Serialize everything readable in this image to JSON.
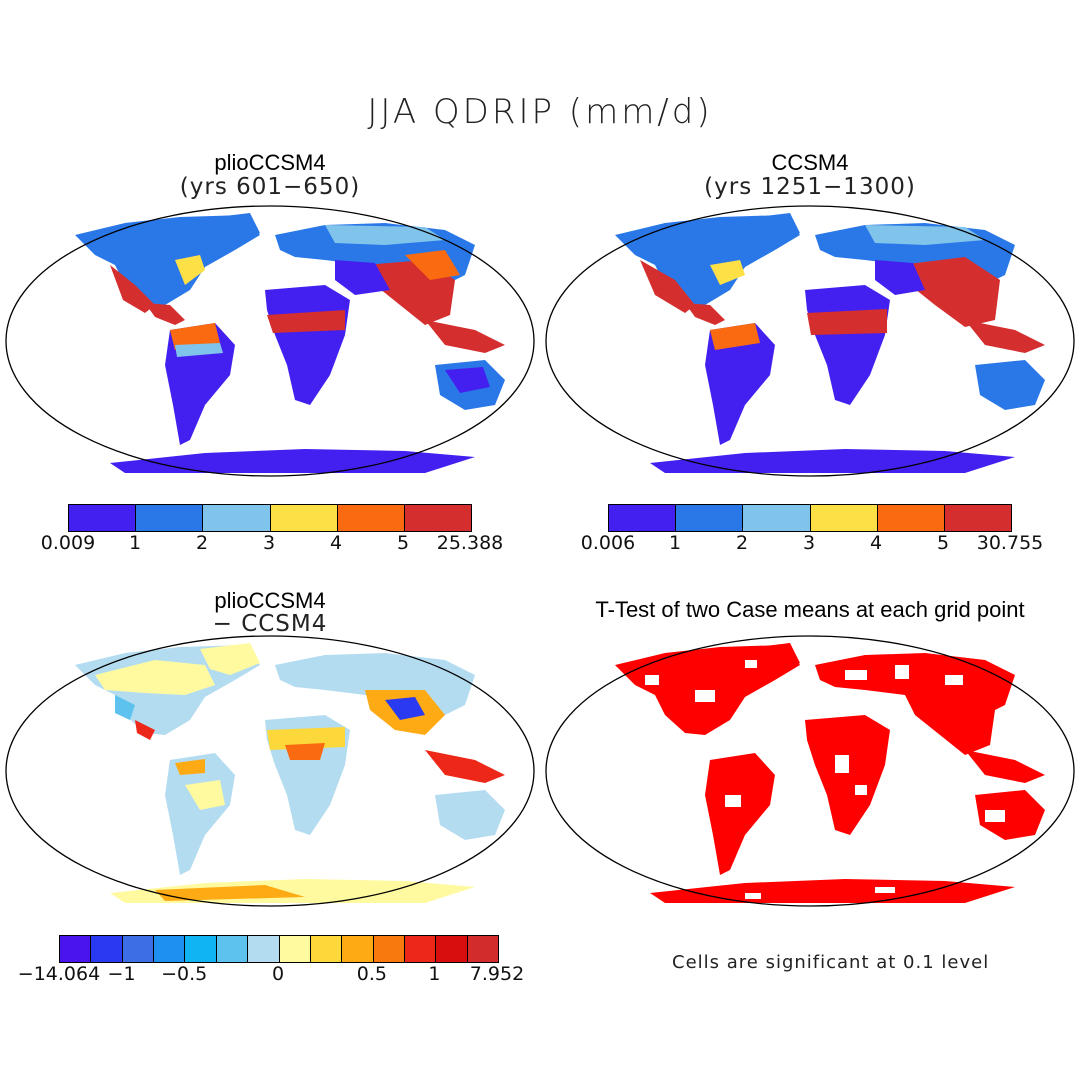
{
  "figure_title": "JJA QDRIP (mm/d)",
  "panels": {
    "top_left": {
      "title": "plioCCSM4",
      "subtitle": "(yrs 601−650)"
    },
    "top_right": {
      "title": "CCSM4",
      "subtitle": "(yrs 1251−1300)"
    },
    "bottom_left": {
      "title": "plioCCSM4",
      "subtitle": "− CCSM4"
    },
    "bottom_right": {
      "title": "T-Test of two Case means at each grid point"
    }
  },
  "colorbars": {
    "top_left": {
      "labels": [
        "0.009",
        "1",
        "2",
        "3",
        "4",
        "5",
        "25.388"
      ],
      "colors": [
        "#4420f0",
        "#2a78e8",
        "#80c4ec",
        "#fde046",
        "#fa6a10",
        "#d42e2e"
      ]
    },
    "top_right": {
      "labels": [
        "0.006",
        "1",
        "2",
        "3",
        "4",
        "5",
        "30.755"
      ],
      "colors": [
        "#4420f0",
        "#2a78e8",
        "#80c4ec",
        "#fde046",
        "#fa6a10",
        "#d42e2e"
      ]
    },
    "bottom_left": {
      "labels": [
        "−14.064",
        "−1",
        "−0.5",
        "0",
        "0.5",
        "1",
        "7.952"
      ],
      "colors": [
        "#4a14ee",
        "#2a3af0",
        "#3e6ee6",
        "#1e90f0",
        "#10b4f2",
        "#5ec2ee",
        "#b4dcf0",
        "#fffaa0",
        "#fdd83a",
        "#fdaa14",
        "#f87a0e",
        "#ee2818",
        "#d80e0e",
        "#d22c2c"
      ]
    }
  },
  "significance_note": "Cells are significant at 0.1 level",
  "map_colors": {
    "ocean": "#ffffff",
    "coast": "#000000",
    "significant": "#ff0000"
  }
}
